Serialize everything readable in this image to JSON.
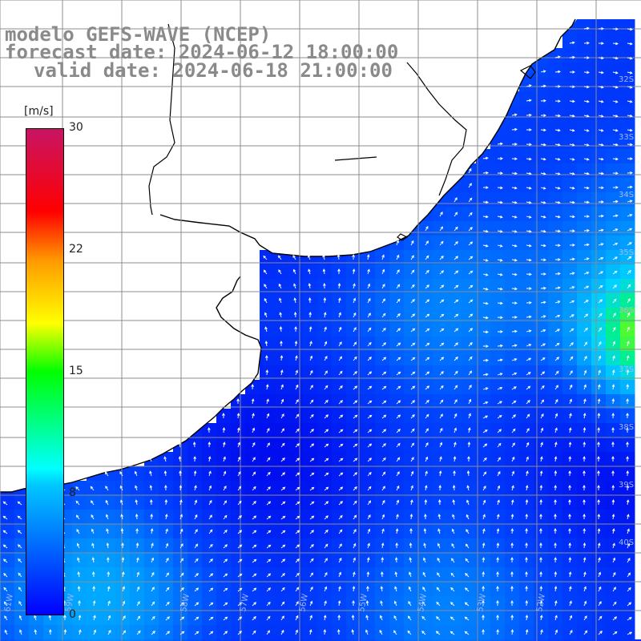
{
  "title": {
    "line1": "modelo GEFS-WAVE (NCEP)",
    "line2": "forecast date: 2024-06-12 18:00:00",
    "line3": "valid date: 2024-06-18 21:00:00"
  },
  "colorbar": {
    "unit": "[m/s]",
    "ticks": [
      "30",
      "22",
      "15",
      "8",
      "0"
    ],
    "tick_values": [
      30,
      22,
      15,
      8,
      0
    ],
    "range": [
      0,
      30
    ],
    "colors": [
      "#0000ff",
      "#00c8ff",
      "#00ffff",
      "#00ff00",
      "#ffff00",
      "#ff9900",
      "#ff0000",
      "#c81464"
    ]
  },
  "map": {
    "land_color": "#ffffff",
    "coast_color": "#000000",
    "grid_color": "#8c8c8c",
    "arrow_color": "#ffffff",
    "lat_labels": [
      "32S",
      "33S",
      "34S",
      "35S",
      "36S",
      "37S",
      "38S",
      "39S",
      "40S"
    ],
    "lon_labels": [
      "61W",
      "59W",
      "58W",
      "57W",
      "56W",
      "55W",
      "54W",
      "53W",
      "52W"
    ]
  }
}
